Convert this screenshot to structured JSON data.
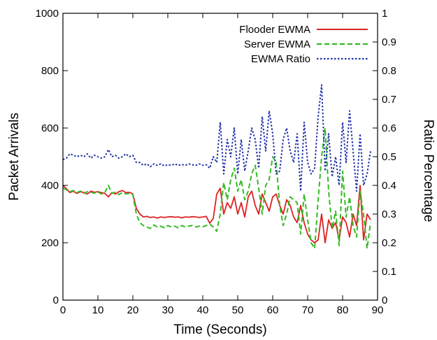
{
  "chart_data": {
    "type": "line",
    "title": "",
    "xlabel": "Time (Seconds)",
    "ylabel": "Packet Arrivals",
    "y2label": "Ratio Percentage",
    "xlim": [
      0,
      90
    ],
    "ylim": [
      0,
      1000
    ],
    "y2lim": [
      0,
      1
    ],
    "x_ticks": [
      "0",
      "10",
      "20",
      "30",
      "40",
      "50",
      "60",
      "70",
      "80",
      "90"
    ],
    "y_ticks": [
      "0",
      "200",
      "400",
      "600",
      "800",
      "1000"
    ],
    "y2_ticks": [
      "0",
      "0.1",
      "0.2",
      "0.3",
      "0.4",
      "0.5",
      "0.6",
      "0.7",
      "0.8",
      "0.9",
      "1"
    ],
    "grid": false,
    "legend_position": "top-right",
    "series": [
      {
        "name": "Flooder EWMA",
        "color": "#dd2222",
        "style": "solid",
        "axis": "left",
        "x": [
          0,
          1,
          2,
          3,
          4,
          5,
          6,
          7,
          8,
          9,
          10,
          11,
          12,
          13,
          14,
          15,
          16,
          17,
          18,
          19,
          20,
          21,
          22,
          23,
          24,
          25,
          26,
          27,
          28,
          29,
          30,
          31,
          32,
          33,
          34,
          35,
          36,
          37,
          38,
          39,
          40,
          41,
          42,
          43,
          44,
          45,
          46,
          47,
          48,
          49,
          50,
          51,
          52,
          53,
          54,
          55,
          56,
          57,
          58,
          59,
          60,
          61,
          62,
          63,
          64,
          65,
          66,
          67,
          68,
          69,
          70,
          71,
          72,
          73,
          74,
          75,
          76,
          77,
          78,
          79,
          80,
          81,
          82,
          83,
          84,
          85,
          86,
          87,
          88
        ],
        "y": [
          400,
          388,
          375,
          380,
          372,
          378,
          375,
          370,
          380,
          376,
          378,
          375,
          372,
          360,
          375,
          370,
          378,
          382,
          375,
          376,
          370,
          320,
          300,
          290,
          292,
          288,
          290,
          286,
          290,
          288,
          290,
          291,
          289,
          290,
          287,
          290,
          289,
          291,
          290,
          288,
          290,
          292,
          268,
          285,
          370,
          390,
          300,
          340,
          320,
          360,
          300,
          340,
          290,
          360,
          380,
          330,
          300,
          370,
          340,
          310,
          360,
          370,
          330,
          300,
          350,
          330,
          290,
          270,
          330,
          270,
          230,
          210,
          200,
          210,
          300,
          200,
          280,
          250,
          270,
          210,
          290,
          270,
          220,
          300,
          260,
          400,
          210,
          300,
          280
        ]
      },
      {
        "name": "Server EWMA",
        "color": "#33bb22",
        "style": "dashed",
        "axis": "left",
        "x": [
          0,
          1,
          2,
          3,
          4,
          5,
          6,
          7,
          8,
          9,
          10,
          11,
          12,
          13,
          14,
          15,
          16,
          17,
          18,
          19,
          20,
          21,
          22,
          23,
          24,
          25,
          26,
          27,
          28,
          29,
          30,
          31,
          32,
          33,
          34,
          35,
          36,
          37,
          38,
          39,
          40,
          41,
          42,
          43,
          44,
          45,
          46,
          47,
          48,
          49,
          50,
          51,
          52,
          53,
          54,
          55,
          56,
          57,
          58,
          59,
          60,
          61,
          62,
          63,
          64,
          65,
          66,
          67,
          68,
          69,
          70,
          71,
          72,
          73,
          74,
          75,
          76,
          77,
          78,
          79,
          80,
          81,
          82,
          83,
          84,
          85,
          86,
          87,
          88
        ],
        "y": [
          390,
          385,
          378,
          382,
          375,
          380,
          372,
          378,
          376,
          373,
          377,
          370,
          375,
          400,
          372,
          376,
          368,
          375,
          370,
          372,
          368,
          300,
          270,
          260,
          255,
          250,
          262,
          255,
          258,
          252,
          260,
          255,
          258,
          252,
          260,
          255,
          258,
          260,
          255,
          258,
          256,
          260,
          265,
          255,
          240,
          300,
          410,
          350,
          420,
          460,
          380,
          420,
          350,
          380,
          440,
          470,
          390,
          300,
          400,
          420,
          500,
          480,
          330,
          260,
          300,
          360,
          350,
          340,
          230,
          370,
          280,
          200,
          180,
          350,
          500,
          600,
          380,
          250,
          310,
          190,
          450,
          290,
          360,
          260,
          220,
          380,
          300,
          180,
          270
        ]
      },
      {
        "name": "EWMA Ratio",
        "color": "#2233aa",
        "style": "dotted",
        "axis": "right",
        "x": [
          0,
          1,
          2,
          3,
          4,
          5,
          6,
          7,
          8,
          9,
          10,
          11,
          12,
          13,
          14,
          15,
          16,
          17,
          18,
          19,
          20,
          21,
          22,
          23,
          24,
          25,
          26,
          27,
          28,
          29,
          30,
          31,
          32,
          33,
          34,
          35,
          36,
          37,
          38,
          39,
          40,
          41,
          42,
          43,
          44,
          45,
          46,
          47,
          48,
          49,
          50,
          51,
          52,
          53,
          54,
          55,
          56,
          57,
          58,
          59,
          60,
          61,
          62,
          63,
          64,
          65,
          66,
          67,
          68,
          69,
          70,
          71,
          72,
          73,
          74,
          75,
          76,
          77,
          78,
          79,
          80,
          81,
          82,
          83,
          84,
          85,
          86,
          87,
          88
        ],
        "y": [
          0.49,
          0.495,
          0.51,
          0.505,
          0.5,
          0.505,
          0.5,
          0.51,
          0.495,
          0.505,
          0.5,
          0.495,
          0.5,
          0.525,
          0.5,
          0.505,
          0.495,
          0.5,
          0.51,
          0.5,
          0.505,
          0.48,
          0.48,
          0.47,
          0.475,
          0.465,
          0.475,
          0.47,
          0.475,
          0.468,
          0.472,
          0.47,
          0.475,
          0.47,
          0.473,
          0.47,
          0.475,
          0.472,
          0.47,
          0.475,
          0.47,
          0.472,
          0.46,
          0.5,
          0.48,
          0.62,
          0.44,
          0.56,
          0.5,
          0.6,
          0.44,
          0.56,
          0.45,
          0.52,
          0.6,
          0.56,
          0.46,
          0.64,
          0.52,
          0.66,
          0.58,
          0.44,
          0.45,
          0.56,
          0.6,
          0.52,
          0.48,
          0.58,
          0.38,
          0.62,
          0.48,
          0.44,
          0.46,
          0.64,
          0.75,
          0.45,
          0.58,
          0.43,
          0.5,
          0.4,
          0.62,
          0.48,
          0.66,
          0.52,
          0.38,
          0.58,
          0.4,
          0.44,
          0.52
        ]
      }
    ]
  }
}
